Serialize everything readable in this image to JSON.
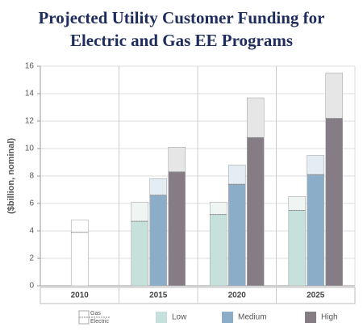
{
  "chart_data": {
    "type": "stacked-bar",
    "title": [
      "Projected Utility Customer Funding for",
      "Electric and Gas EE Programs"
    ],
    "y_label": "($billion, nominal)",
    "categories": [
      "2010",
      "2015",
      "2020",
      "2025"
    ],
    "stack_labels": [
      "Electric",
      "Gas"
    ],
    "series": [
      {
        "color": "#ffffff",
        "gas_color": "#ffffff",
        "electric": [
          3.9,
          null,
          null,
          null
        ],
        "gas": [
          0.9,
          null,
          null,
          null
        ]
      },
      {
        "name": "Low",
        "color": "#c6e1dc",
        "gas_color": "#eef5f3",
        "electric": [
          null,
          4.7,
          5.2,
          5.5
        ],
        "gas": [
          null,
          1.4,
          0.9,
          1.0
        ]
      },
      {
        "name": "Medium",
        "color": "#8badc8",
        "gas_color": "#e5edf4",
        "electric": [
          null,
          6.6,
          7.4,
          8.1
        ],
        "gas": [
          null,
          1.2,
          1.4,
          1.4
        ]
      },
      {
        "name": "High",
        "color": "#857c86",
        "gas_color": "#e6e6e6",
        "electric": [
          null,
          8.3,
          10.8,
          12.2
        ],
        "gas": [
          null,
          1.8,
          2.9,
          3.3
        ]
      }
    ],
    "ylim": [
      0,
      16
    ],
    "yticks": [
      0,
      2,
      4,
      6,
      8,
      10,
      12,
      14,
      16
    ],
    "grid": true
  }
}
